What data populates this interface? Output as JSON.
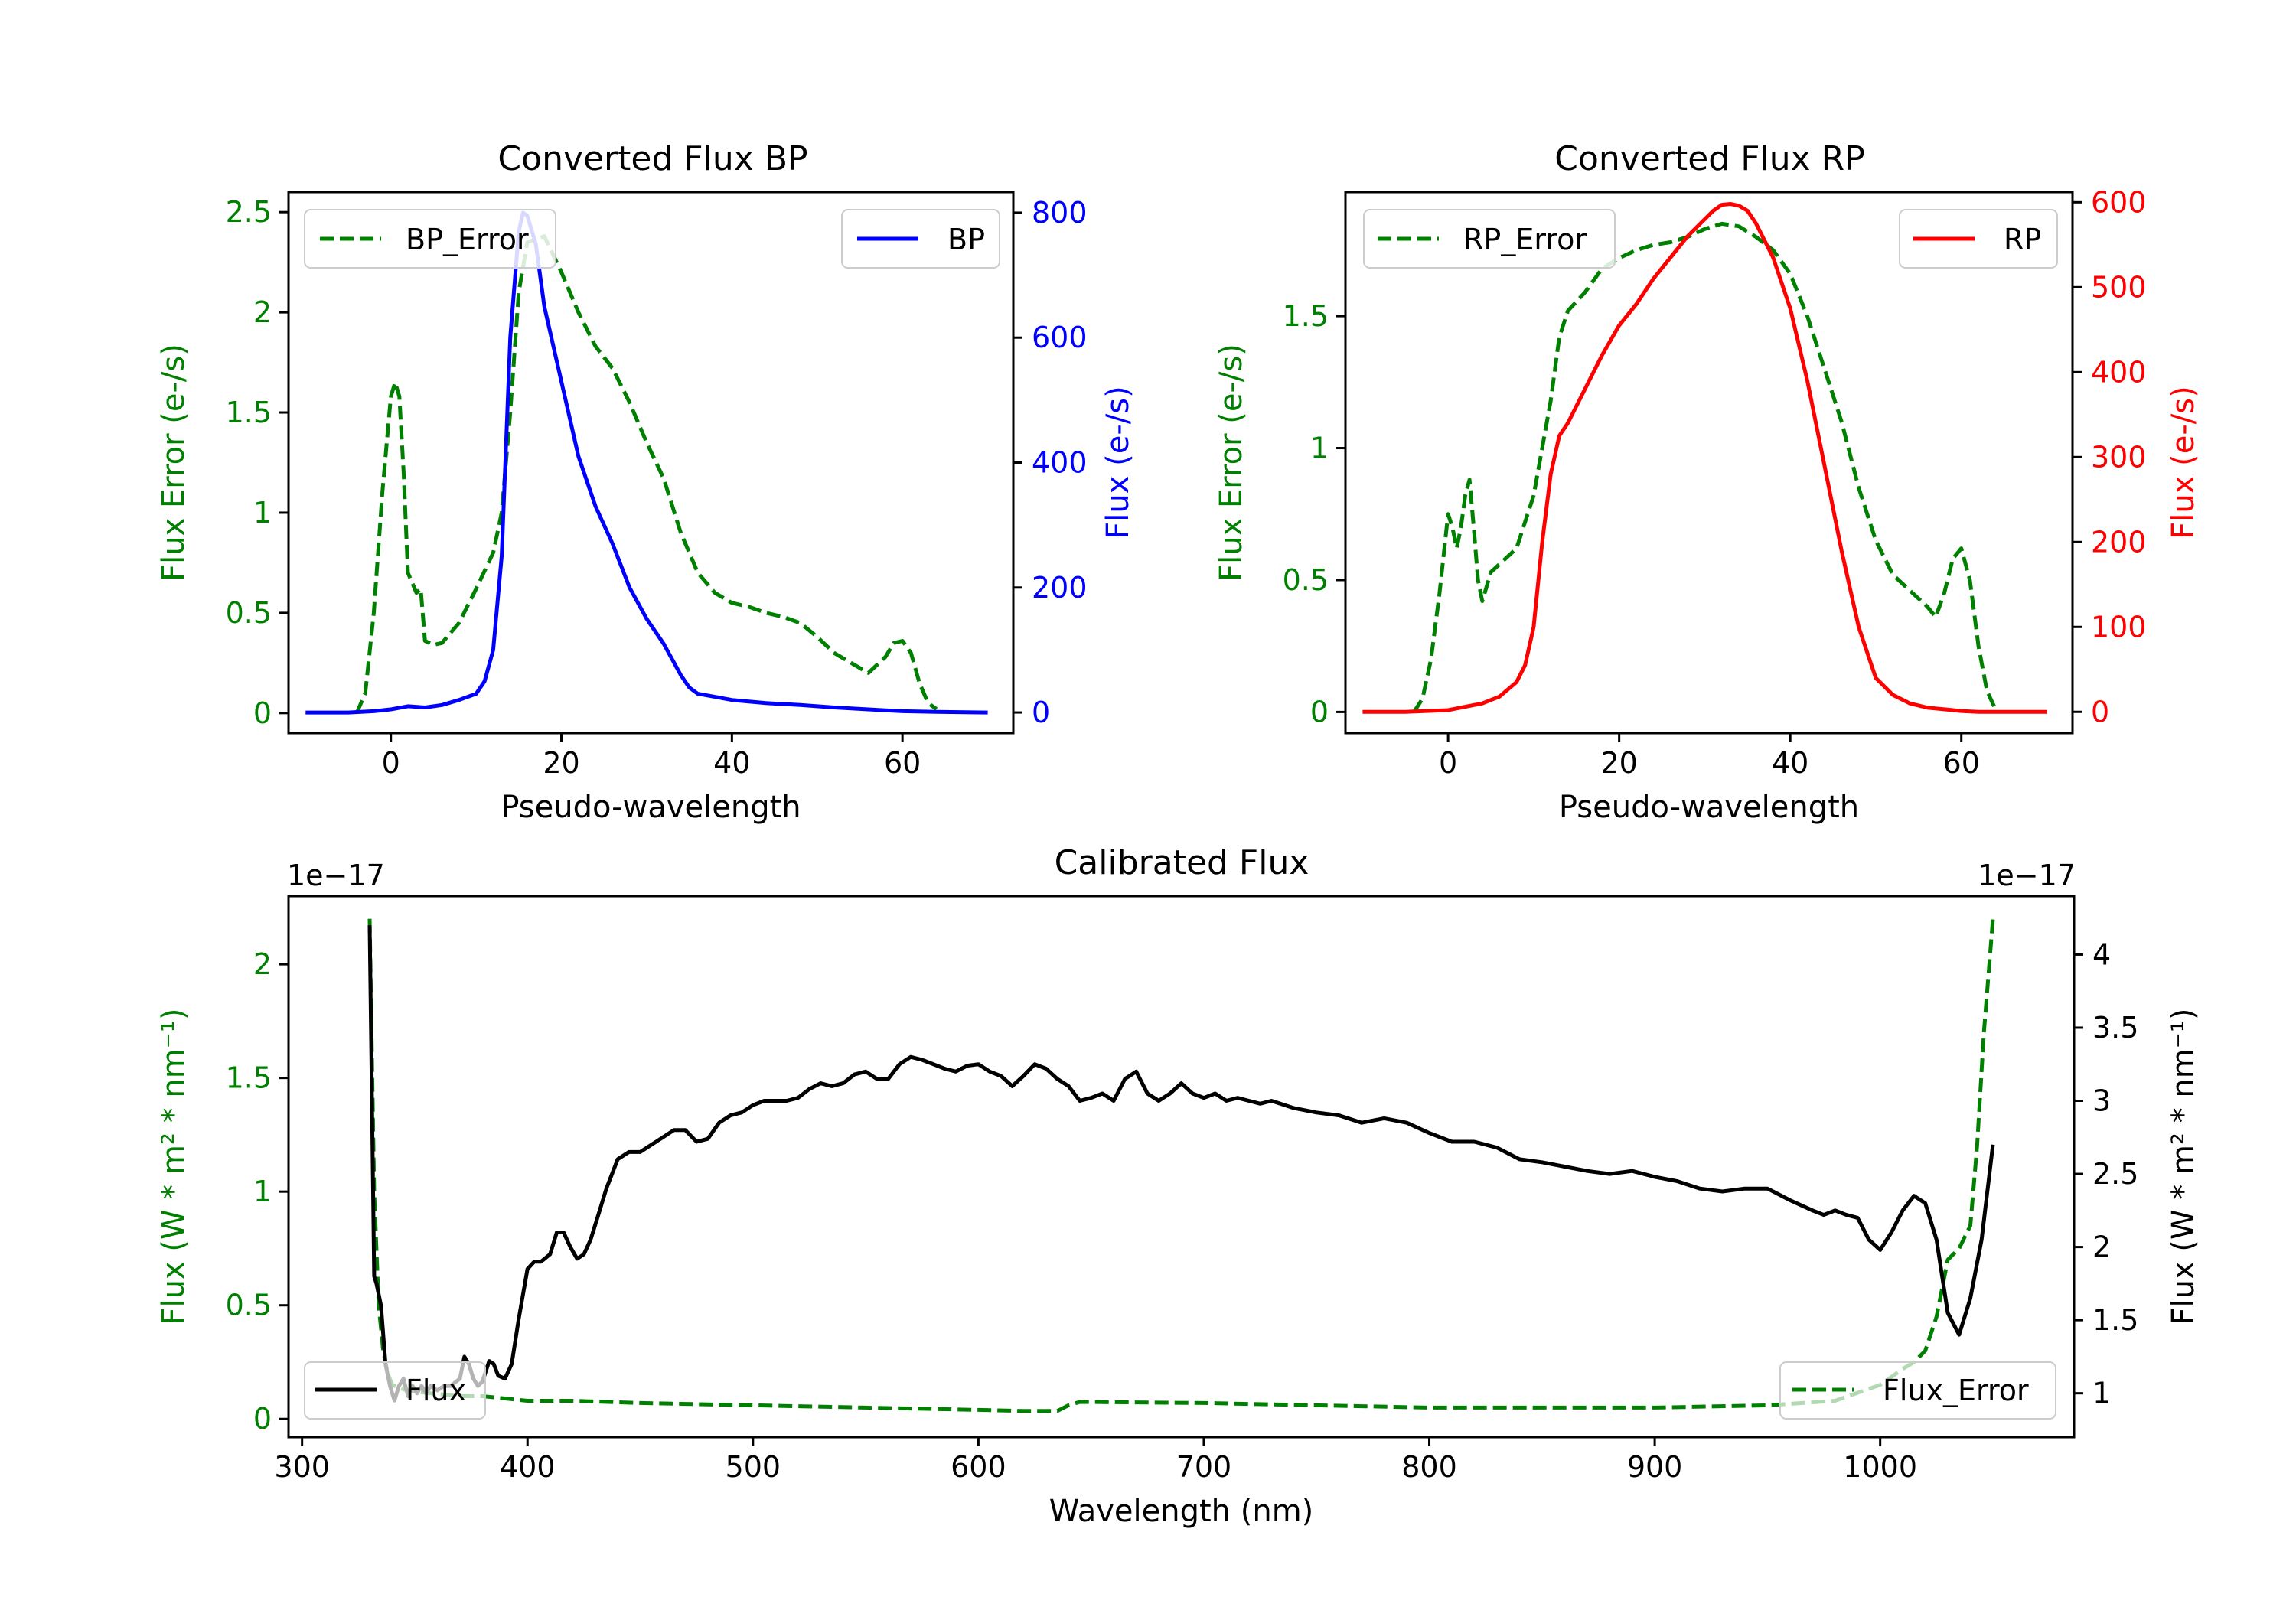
{
  "chart_data": [
    {
      "type": "line",
      "title": "Converted Flux BP",
      "xlabel": "Pseudo-wavelength",
      "ylabel": "Flux Error (e-/s)",
      "ylabel_right": "Flux (e-/s)",
      "xlim": [
        -12,
        73
      ],
      "ylim": [
        -0.1,
        2.6
      ],
      "ylim_right": [
        -33,
        833
      ],
      "xticks": [
        0,
        20,
        40,
        60
      ],
      "yticks": [
        0.0,
        0.5,
        1.0,
        1.5,
        2.0,
        2.5
      ],
      "yticks_right": [
        0,
        200,
        400,
        600,
        800
      ],
      "left_color": "#008000",
      "right_color": "#0000ff",
      "series": [
        {
          "name": "BP_Error",
          "axis": "left",
          "color": "#008000",
          "style": "dashed",
          "x": [
            -4,
            -3,
            -2,
            -1,
            0,
            0.5,
            1,
            1.5,
            2,
            3,
            3.5,
            4,
            5,
            6,
            8,
            10,
            12,
            13,
            14,
            15,
            16,
            18,
            20,
            22,
            24,
            26,
            28,
            30,
            32,
            34,
            36,
            38,
            40,
            42,
            44,
            46,
            48,
            50,
            52,
            54,
            56,
            58,
            59,
            60,
            61,
            62,
            63,
            64
          ],
          "y": [
            0.0,
            0.1,
            0.5,
            1.1,
            1.58,
            1.65,
            1.58,
            1.2,
            0.7,
            0.6,
            0.62,
            0.36,
            0.34,
            0.35,
            0.45,
            0.62,
            0.8,
            1.0,
            1.5,
            2.1,
            2.35,
            2.38,
            2.2,
            2.0,
            1.83,
            1.72,
            1.55,
            1.35,
            1.17,
            0.9,
            0.7,
            0.6,
            0.55,
            0.53,
            0.5,
            0.48,
            0.45,
            0.38,
            0.3,
            0.25,
            0.2,
            0.28,
            0.35,
            0.36,
            0.3,
            0.15,
            0.05,
            0.02
          ]
        },
        {
          "name": "BP",
          "axis": "right",
          "color": "#0000ff",
          "style": "solid",
          "x": [
            -10,
            -5,
            -2,
            0,
            2,
            4,
            6,
            8,
            10,
            11,
            12,
            13,
            14,
            15,
            15.5,
            16,
            17,
            18,
            20,
            22,
            24,
            26,
            28,
            30,
            32,
            34,
            35,
            36,
            38,
            40,
            44,
            48,
            52,
            56,
            60,
            64,
            70
          ],
          "y": [
            0,
            0,
            2,
            5,
            10,
            8,
            12,
            20,
            30,
            50,
            100,
            250,
            600,
            770,
            800,
            795,
            750,
            650,
            530,
            410,
            330,
            270,
            200,
            150,
            110,
            60,
            40,
            30,
            25,
            20,
            15,
            12,
            8,
            5,
            2,
            1,
            0
          ]
        }
      ],
      "legend": [
        {
          "label": "BP_Error",
          "placement": "upper-left"
        },
        {
          "label": "BP",
          "placement": "upper-right"
        }
      ]
    },
    {
      "type": "line",
      "title": "Converted Flux RP",
      "xlabel": "Pseudo-wavelength",
      "ylabel": "Flux Error (e-/s)",
      "ylabel_right": "Flux (e-/s)",
      "xlim": [
        -12,
        73
      ],
      "ylim": [
        -0.08,
        1.97
      ],
      "ylim_right": [
        -25,
        612
      ],
      "xticks": [
        0,
        20,
        40,
        60
      ],
      "yticks": [
        0.0,
        0.5,
        1.0,
        1.5
      ],
      "yticks_right": [
        0,
        100,
        200,
        300,
        400,
        500,
        600
      ],
      "left_color": "#008000",
      "right_color": "#ff0000",
      "series": [
        {
          "name": "RP_Error",
          "axis": "left",
          "color": "#008000",
          "style": "dashed",
          "x": [
            -4,
            -3,
            -2,
            -1,
            0,
            0.5,
            1,
            1.5,
            2,
            2.5,
            3,
            3.5,
            4,
            5,
            6,
            8,
            10,
            12,
            13,
            14,
            16,
            18,
            20,
            22,
            24,
            26,
            28,
            30,
            32,
            34,
            36,
            38,
            40,
            42,
            44,
            46,
            48,
            50,
            52,
            54,
            56,
            57,
            58,
            59,
            60,
            61,
            62,
            63,
            64
          ],
          "y": [
            0.0,
            0.05,
            0.2,
            0.45,
            0.75,
            0.7,
            0.62,
            0.7,
            0.82,
            0.88,
            0.7,
            0.5,
            0.42,
            0.53,
            0.56,
            0.62,
            0.82,
            1.18,
            1.42,
            1.52,
            1.59,
            1.68,
            1.72,
            1.75,
            1.77,
            1.78,
            1.8,
            1.83,
            1.85,
            1.84,
            1.8,
            1.75,
            1.66,
            1.5,
            1.3,
            1.1,
            0.85,
            0.65,
            0.52,
            0.46,
            0.4,
            0.36,
            0.45,
            0.58,
            0.62,
            0.5,
            0.25,
            0.08,
            0.01
          ]
        },
        {
          "name": "RP",
          "axis": "right",
          "color": "#ff0000",
          "style": "solid",
          "x": [
            -10,
            -5,
            0,
            4,
            6,
            8,
            9,
            10,
            11,
            12,
            13,
            14,
            16,
            18,
            20,
            22,
            24,
            26,
            28,
            30,
            31,
            32,
            33,
            34,
            35,
            36,
            38,
            40,
            42,
            44,
            46,
            48,
            50,
            52,
            54,
            56,
            58,
            60,
            62,
            64,
            70
          ],
          "y": [
            0,
            0,
            2,
            10,
            18,
            35,
            55,
            100,
            200,
            280,
            325,
            340,
            380,
            420,
            455,
            480,
            510,
            535,
            560,
            580,
            590,
            597,
            598,
            596,
            590,
            575,
            535,
            475,
            390,
            290,
            190,
            100,
            40,
            20,
            10,
            5,
            3,
            1,
            0,
            0,
            0
          ]
        }
      ],
      "legend": [
        {
          "label": "RP_Error",
          "placement": "upper-left"
        },
        {
          "label": "RP",
          "placement": "upper-right"
        }
      ]
    },
    {
      "type": "line",
      "title": "Calibrated Flux",
      "xlabel": "Wavelength (nm)",
      "ylabel": "Flux (W * m² * nm⁻¹)",
      "ylabel_right": "Flux (W * m² * nm⁻¹)",
      "offset_left": "1e−17",
      "offset_right": "1e−17",
      "xlim": [
        294,
        1086
      ],
      "ylim": [
        -0.08,
        2.3
      ],
      "ylim_right": [
        0.7,
        4.4
      ],
      "xticks": [
        300,
        400,
        500,
        600,
        700,
        800,
        900,
        1000
      ],
      "yticks": [
        0.0,
        0.5,
        1.0,
        1.5,
        2.0
      ],
      "yticks_right": [
        1.0,
        1.5,
        2.0,
        2.5,
        3.0,
        3.5,
        4.0
      ],
      "left_color": "#008000",
      "right_color": "#000000",
      "series": [
        {
          "name": "Flux_Error",
          "axis": "left",
          "color": "#008000",
          "style": "dashed",
          "x": [
            330,
            332,
            334,
            336,
            338,
            340,
            345,
            350,
            360,
            370,
            380,
            390,
            400,
            420,
            450,
            500,
            550,
            600,
            620,
            635,
            640,
            645,
            700,
            750,
            800,
            850,
            900,
            950,
            980,
            1000,
            1010,
            1015,
            1020,
            1025,
            1030,
            1035,
            1040,
            1043,
            1046,
            1050
          ],
          "y": [
            2.2,
            1.0,
            0.5,
            0.3,
            0.2,
            0.15,
            0.13,
            0.12,
            0.11,
            0.1,
            0.1,
            0.09,
            0.08,
            0.08,
            0.07,
            0.06,
            0.05,
            0.04,
            0.035,
            0.035,
            0.06,
            0.075,
            0.07,
            0.06,
            0.05,
            0.05,
            0.05,
            0.06,
            0.08,
            0.15,
            0.22,
            0.25,
            0.3,
            0.45,
            0.7,
            0.75,
            0.85,
            1.2,
            1.7,
            2.2
          ]
        },
        {
          "name": "Flux",
          "axis": "right",
          "color": "#000000",
          "style": "solid",
          "x": [
            330,
            331,
            332,
            333,
            335,
            337,
            339,
            341,
            343,
            345,
            347,
            349,
            351,
            353,
            355,
            357,
            360,
            363,
            366,
            370,
            372,
            374,
            376,
            378,
            380,
            383,
            385,
            387,
            390,
            393,
            396,
            400,
            403,
            406,
            410,
            413,
            416,
            419,
            422,
            425,
            428,
            431,
            435,
            440,
            445,
            450,
            455,
            460,
            465,
            470,
            475,
            480,
            485,
            490,
            495,
            500,
            505,
            510,
            515,
            520,
            525,
            530,
            535,
            540,
            545,
            550,
            555,
            560,
            565,
            570,
            575,
            580,
            585,
            590,
            595,
            600,
            605,
            610,
            615,
            620,
            625,
            630,
            635,
            640,
            645,
            650,
            655,
            660,
            665,
            670,
            675,
            680,
            685,
            690,
            695,
            700,
            705,
            710,
            715,
            720,
            725,
            730,
            740,
            750,
            760,
            770,
            780,
            790,
            800,
            810,
            820,
            830,
            840,
            850,
            860,
            870,
            880,
            890,
            900,
            910,
            920,
            930,
            940,
            950,
            960,
            970,
            975,
            980,
            985,
            990,
            995,
            1000,
            1005,
            1010,
            1015,
            1020,
            1025,
            1030,
            1035,
            1040,
            1045,
            1050
          ],
          "y": [
            4.2,
            3.0,
            1.8,
            1.75,
            1.6,
            1.2,
            1.05,
            0.95,
            1.05,
            1.1,
            0.98,
            1.05,
            1.0,
            1.05,
            1.0,
            1.05,
            1.02,
            1.05,
            1.05,
            1.1,
            1.25,
            1.2,
            1.1,
            1.05,
            1.08,
            1.22,
            1.2,
            1.12,
            1.1,
            1.2,
            1.5,
            1.85,
            1.9,
            1.9,
            1.95,
            2.1,
            2.1,
            2.0,
            1.92,
            1.95,
            2.05,
            2.2,
            2.4,
            2.6,
            2.65,
            2.65,
            2.7,
            2.75,
            2.8,
            2.8,
            2.72,
            2.74,
            2.85,
            2.9,
            2.92,
            2.97,
            3.0,
            3.0,
            3.0,
            3.02,
            3.08,
            3.12,
            3.1,
            3.12,
            3.18,
            3.2,
            3.15,
            3.15,
            3.25,
            3.3,
            3.28,
            3.25,
            3.22,
            3.2,
            3.24,
            3.25,
            3.2,
            3.17,
            3.1,
            3.17,
            3.25,
            3.22,
            3.15,
            3.1,
            3.0,
            3.02,
            3.05,
            3.0,
            3.15,
            3.2,
            3.05,
            3.0,
            3.05,
            3.12,
            3.05,
            3.02,
            3.05,
            3.0,
            3.02,
            3.0,
            2.98,
            3.0,
            2.95,
            2.92,
            2.9,
            2.85,
            2.88,
            2.85,
            2.78,
            2.72,
            2.72,
            2.68,
            2.6,
            2.58,
            2.55,
            2.52,
            2.5,
            2.52,
            2.48,
            2.45,
            2.4,
            2.38,
            2.4,
            2.4,
            2.32,
            2.25,
            2.22,
            2.25,
            2.22,
            2.2,
            2.05,
            1.98,
            2.1,
            2.25,
            2.35,
            2.3,
            2.05,
            1.55,
            1.4,
            1.65,
            2.05,
            2.7
          ]
        }
      ],
      "legend": [
        {
          "label": "Flux",
          "placement": "lower-left"
        },
        {
          "label": "Flux_Error",
          "placement": "lower-right"
        }
      ]
    }
  ]
}
